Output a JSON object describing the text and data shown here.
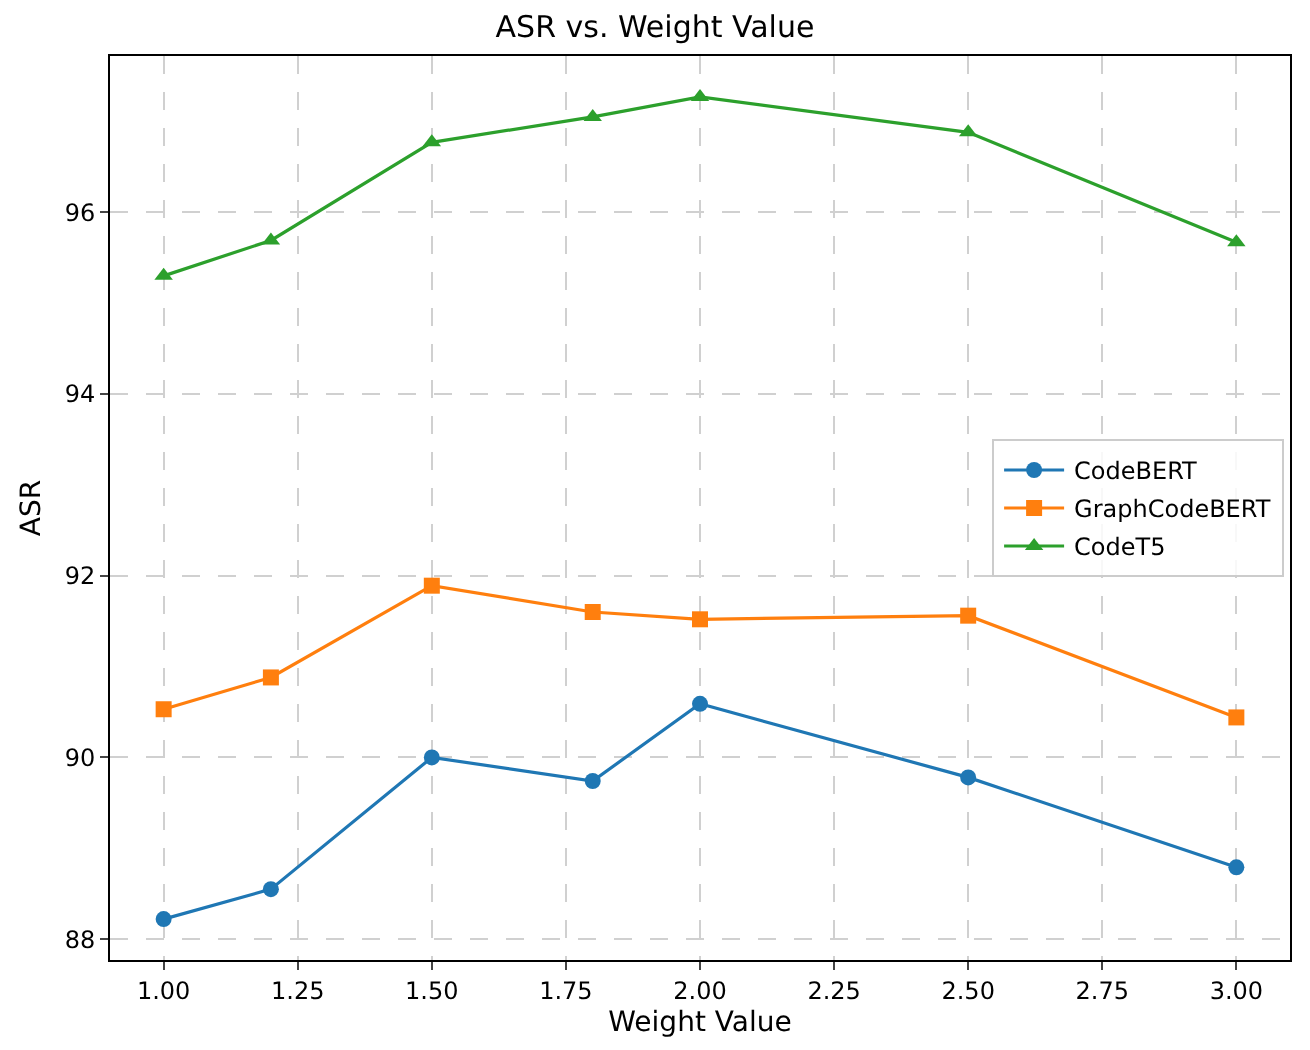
{
  "chart_data": {
    "type": "line",
    "title": "ASR vs. Weight Value",
    "xlabel": "Weight Value",
    "ylabel": "ASR",
    "x": [
      1.0,
      1.2,
      1.5,
      1.8,
      2.0,
      2.5,
      3.0
    ],
    "series": [
      {
        "name": "CodeBERT",
        "color": "#1f77b4",
        "marker": "circle",
        "values": [
          88.22,
          88.55,
          90.0,
          89.74,
          90.59,
          89.78,
          88.79
        ]
      },
      {
        "name": "GraphCodeBERT",
        "color": "#ff7f0e",
        "marker": "square",
        "values": [
          90.53,
          90.88,
          91.89,
          91.6,
          91.52,
          91.56,
          90.44
        ]
      },
      {
        "name": "CodeT5",
        "color": "#2ca02c",
        "marker": "triangle",
        "values": [
          95.3,
          95.69,
          96.77,
          97.05,
          97.27,
          96.88,
          95.67
        ]
      }
    ],
    "xlim": [
      0.9,
      3.1
    ],
    "xticks": [
      {
        "value": 1.0,
        "label": "1.00"
      },
      {
        "value": 1.25,
        "label": "1.25"
      },
      {
        "value": 1.5,
        "label": "1.50"
      },
      {
        "value": 1.75,
        "label": "1.75"
      },
      {
        "value": 2.0,
        "label": "2.00"
      },
      {
        "value": 2.25,
        "label": "2.25"
      },
      {
        "value": 2.5,
        "label": "2.50"
      },
      {
        "value": 2.75,
        "label": "2.75"
      },
      {
        "value": 3.0,
        "label": "3.00"
      }
    ],
    "ylim": [
      87.77,
      97.72
    ],
    "yticks": [
      88,
      90,
      92,
      94,
      96
    ],
    "grid": true,
    "legend": "right",
    "line_style": "solid"
  }
}
